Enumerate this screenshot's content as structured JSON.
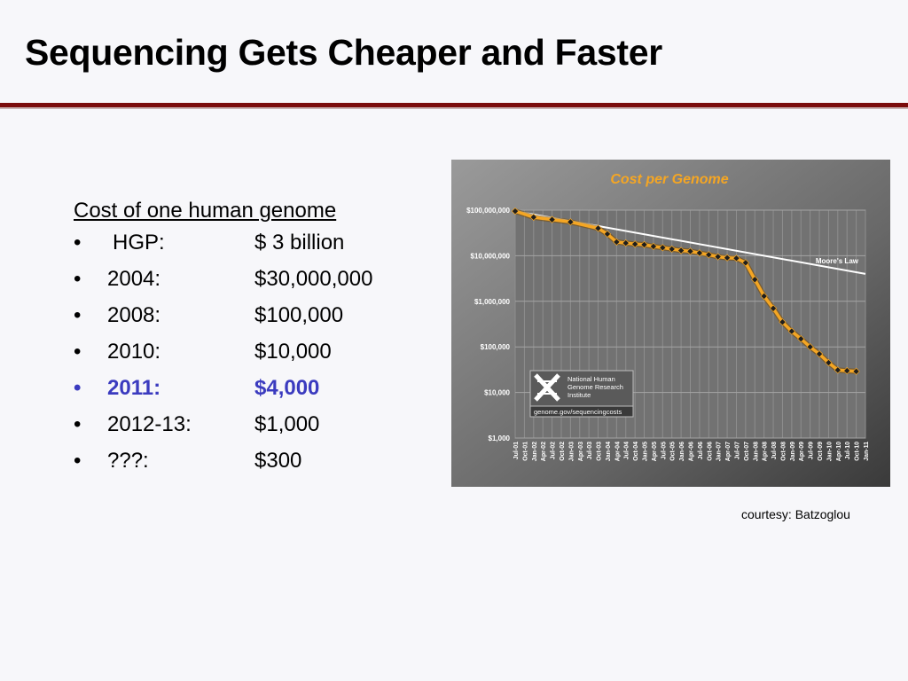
{
  "slide": {
    "title": "Sequencing Gets Cheaper and Faster",
    "list_heading": "Cost of one human genome",
    "rows": [
      {
        "bullet": "•",
        "label": "HGP:",
        "cost": "$ 3 billion",
        "highlight": false
      },
      {
        "bullet": "•",
        "label": "2004:",
        "cost": "$30,000,000",
        "highlight": false
      },
      {
        "bullet": "•",
        "label": "2008:",
        "cost": "$100,000",
        "highlight": false
      },
      {
        "bullet": "•",
        "label": "2010:",
        "cost": "$10,000",
        "highlight": false
      },
      {
        "bullet": "•",
        "label": "2011:",
        "cost": "$4,000",
        "highlight": true
      },
      {
        "bullet": "•",
        "label": "2012-13:",
        "cost": "$1,000",
        "highlight": false
      },
      {
        "bullet": "•",
        "label": "???:",
        "cost": "$300",
        "highlight": false
      }
    ],
    "credit": "courtesy: Batzoglou"
  },
  "colors": {
    "title_rule": "#7a0c0c",
    "highlight_text": "#3b3bbf",
    "chart_title": "#f5a623",
    "series_line": "#f5a623",
    "moores_law_line": "#ffffff"
  },
  "chart_data": {
    "type": "line",
    "title": "Cost per Genome",
    "y_scale": "log",
    "ylim": [
      1000,
      100000000
    ],
    "y_ticks": [
      {
        "value": 100000000,
        "label": "$100,000,000"
      },
      {
        "value": 10000000,
        "label": "$10,000,000"
      },
      {
        "value": 1000000,
        "label": "$1,000,000"
      },
      {
        "value": 100000,
        "label": "$100,000"
      },
      {
        "value": 10000,
        "label": "$10,000"
      },
      {
        "value": 1000,
        "label": "$1,000"
      }
    ],
    "categories": [
      "Jul-01",
      "Oct-01",
      "Jan-02",
      "Apr-02",
      "Jul-02",
      "Oct-02",
      "Jan-03",
      "Apr-03",
      "Jul-03",
      "Oct-03",
      "Jan-04",
      "Apr-04",
      "Jul-04",
      "Oct-04",
      "Jan-05",
      "Apr-05",
      "Jul-05",
      "Oct-05",
      "Jan-06",
      "Apr-06",
      "Jul-06",
      "Oct-06",
      "Jan-07",
      "Apr-07",
      "Jul-07",
      "Oct-07",
      "Jan-08",
      "Apr-08",
      "Jul-08",
      "Oct-08",
      "Jan-09",
      "Apr-09",
      "Jul-09",
      "Oct-09",
      "Jan-10",
      "Apr-10",
      "Jul-10",
      "Oct-10",
      "Jan-11"
    ],
    "grid": true,
    "series": [
      {
        "name": "",
        "points": [
          {
            "x": "Jul-01",
            "y": 95000000
          },
          {
            "x": "Jan-02",
            "y": 70000000
          },
          {
            "x": "Jul-02",
            "y": 62000000
          },
          {
            "x": "Jan-03",
            "y": 55000000
          },
          {
            "x": "Oct-03",
            "y": 40000000
          },
          {
            "x": "Jan-04",
            "y": 30000000
          },
          {
            "x": "Apr-04",
            "y": 20000000
          },
          {
            "x": "Jul-04",
            "y": 19000000
          },
          {
            "x": "Oct-04",
            "y": 18000000
          },
          {
            "x": "Jan-05",
            "y": 17500000
          },
          {
            "x": "Apr-05",
            "y": 16000000
          },
          {
            "x": "Jul-05",
            "y": 15000000
          },
          {
            "x": "Oct-05",
            "y": 14000000
          },
          {
            "x": "Jan-06",
            "y": 13000000
          },
          {
            "x": "Apr-06",
            "y": 12500000
          },
          {
            "x": "Jul-06",
            "y": 11500000
          },
          {
            "x": "Oct-06",
            "y": 10500000
          },
          {
            "x": "Jan-07",
            "y": 9500000
          },
          {
            "x": "Apr-07",
            "y": 9000000
          },
          {
            "x": "Jul-07",
            "y": 8800000
          },
          {
            "x": "Oct-07",
            "y": 7000000
          },
          {
            "x": "Jan-08",
            "y": 3000000
          },
          {
            "x": "Apr-08",
            "y": 1300000
          },
          {
            "x": "Jul-08",
            "y": 700000
          },
          {
            "x": "Oct-08",
            "y": 350000
          },
          {
            "x": "Jan-09",
            "y": 220000
          },
          {
            "x": "Apr-09",
            "y": 150000
          },
          {
            "x": "Jul-09",
            "y": 100000
          },
          {
            "x": "Oct-09",
            "y": 70000
          },
          {
            "x": "Jan-10",
            "y": 45000
          },
          {
            "x": "Apr-10",
            "y": 31000
          },
          {
            "x": "Jul-10",
            "y": 30000
          },
          {
            "x": "Oct-10",
            "y": 29000
          }
        ]
      },
      {
        "name": "Moore's Law",
        "points": [
          {
            "x": "Jul-01",
            "y": 95000000
          },
          {
            "x": "Jan-11",
            "y": 4000000
          }
        ]
      }
    ],
    "logo": {
      "lines": [
        "National Human",
        "Genome Research",
        "Institute"
      ],
      "url": "genome.gov/sequencingcosts"
    }
  }
}
